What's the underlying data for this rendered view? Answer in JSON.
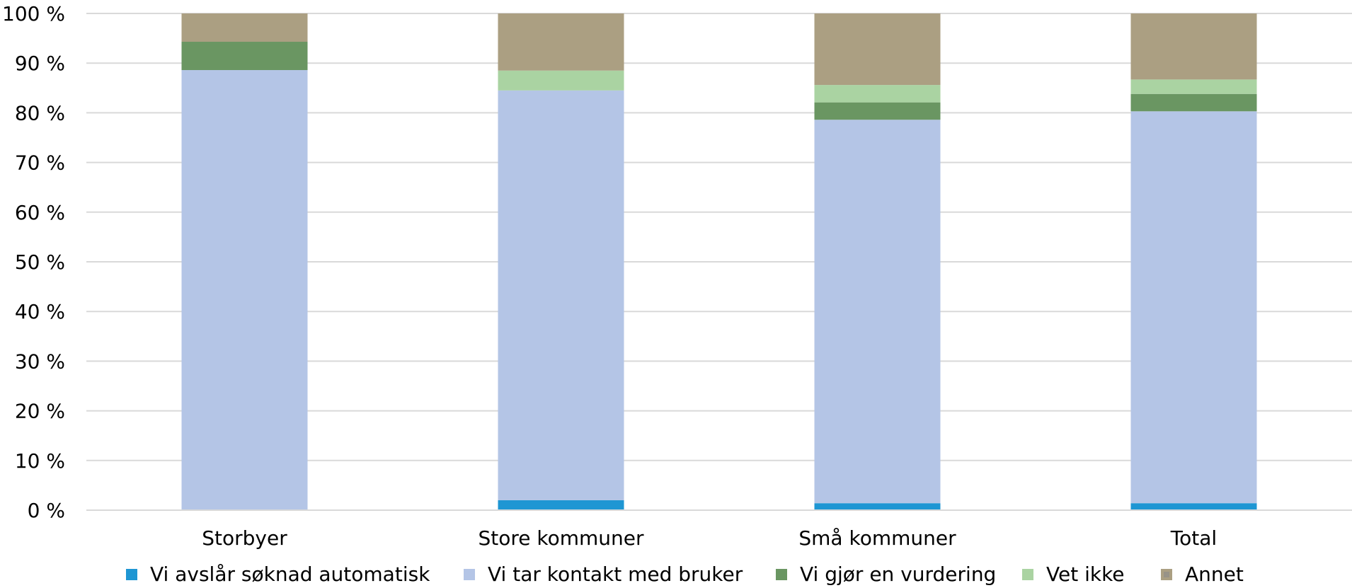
{
  "chart_data": {
    "type": "bar",
    "stacked": true,
    "percent": true,
    "title": "",
    "xlabel": "",
    "ylabel": "",
    "ylim": [
      0,
      100
    ],
    "y_ticks": [
      "0 %",
      "10 %",
      "20 %",
      "30 %",
      "40 %",
      "50 %",
      "60 %",
      "70 %",
      "80 %",
      "90 %",
      "100 %"
    ],
    "grid": true,
    "legend_position": "bottom",
    "categories": [
      "Storbyer",
      "Store kommuner",
      "Små kommuner",
      "Total"
    ],
    "series": [
      {
        "name": "Vi avslår søknad automatisk",
        "color": "#1E96D3",
        "values": [
          0,
          2,
          1.4,
          1.4
        ]
      },
      {
        "name": "Vi tar kontakt med bruker",
        "color": "#B4C5E6",
        "values": [
          88.6,
          82.5,
          77.2,
          78.9
        ]
      },
      {
        "name": "Vi gjør en vurdering",
        "color": "#6A9662",
        "values": [
          5.7,
          0,
          3.5,
          3.5
        ]
      },
      {
        "name": "Vet ikke",
        "color": "#AAD3A2",
        "values": [
          0,
          4,
          3.5,
          2.9
        ]
      },
      {
        "name": "Annet",
        "color": "#AB9F82",
        "values": [
          5.7,
          11.5,
          14.4,
          13.3
        ]
      }
    ]
  }
}
